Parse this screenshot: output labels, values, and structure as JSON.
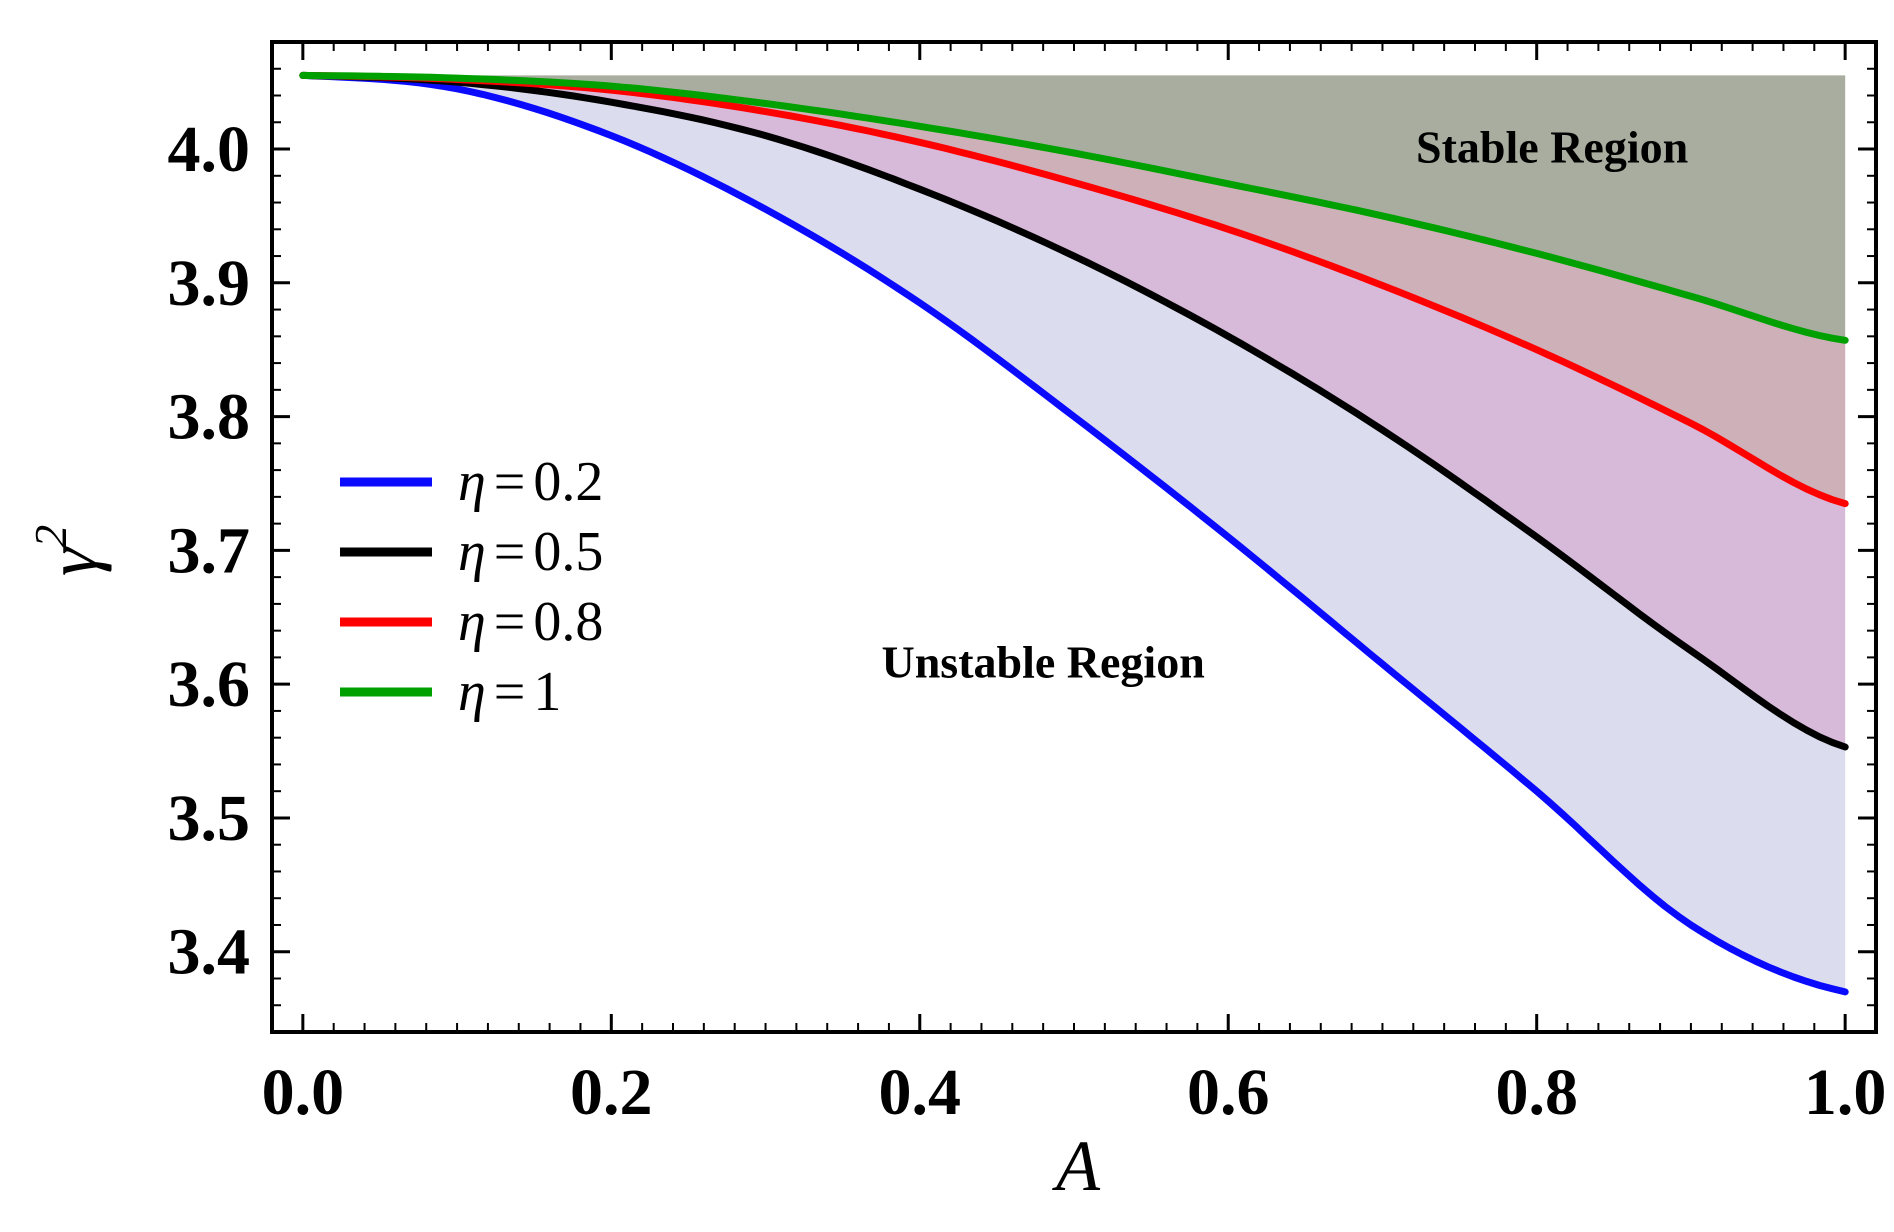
{
  "chart_data": {
    "type": "line",
    "xlabel": "A",
    "ylabel": "γ",
    "ylabel_sup": "2",
    "xlim": [
      -0.02,
      1.02
    ],
    "ylim": [
      3.34,
      4.08
    ],
    "x_ticks": [
      0.0,
      0.2,
      0.4,
      0.6,
      0.8,
      1.0
    ],
    "x_tick_labels": [
      "0.0",
      "0.2",
      "0.4",
      "0.6",
      "0.8",
      "1.0"
    ],
    "y_ticks": [
      3.4,
      3.5,
      3.6,
      3.7,
      3.8,
      3.9,
      4.0
    ],
    "y_tick_labels": [
      "3.4",
      "3.5",
      "3.6",
      "3.7",
      "3.8",
      "3.9",
      "4.0"
    ],
    "grid": false,
    "legend_position": "middle-left",
    "x": [
      0.0,
      0.1,
      0.2,
      0.3,
      0.4,
      0.5,
      0.6,
      0.7,
      0.8,
      0.9,
      1.0
    ],
    "series": [
      {
        "name": "η = 0.2",
        "label_prefix": "η",
        "label_eq": "=",
        "label_value": "0.2",
        "color": "#0a0aff",
        "values": [
          4.055,
          4.045,
          4.01,
          3.955,
          3.885,
          3.8,
          3.71,
          3.615,
          3.52,
          3.42,
          3.37
        ]
      },
      {
        "name": "η = 0.5",
        "label_prefix": "η",
        "label_eq": "=",
        "label_value": "0.5",
        "color": "#000000",
        "values": [
          4.055,
          4.05,
          4.035,
          4.01,
          3.97,
          3.92,
          3.86,
          3.79,
          3.71,
          3.625,
          3.553
        ]
      },
      {
        "name": "η = 0.8",
        "label_prefix": "η",
        "label_eq": "=",
        "label_value": "0.8",
        "color": "#ff0000",
        "values": [
          4.055,
          4.052,
          4.044,
          4.028,
          4.005,
          3.975,
          3.94,
          3.898,
          3.85,
          3.795,
          3.735
        ]
      },
      {
        "name": "η = 1",
        "label_prefix": "η",
        "label_eq": "=",
        "label_value": "1",
        "color": "#00a000",
        "values": [
          4.055,
          4.053,
          4.047,
          4.034,
          4.017,
          3.997,
          3.974,
          3.95,
          3.922,
          3.89,
          3.857
        ]
      }
    ],
    "top_boundary": 4.055,
    "fills": [
      {
        "between": [
          "η = 0.2",
          "η = 0.5"
        ],
        "color": "#dcdcef"
      },
      {
        "between": [
          "η = 0.5",
          "η = 0.8"
        ],
        "color": "#d7b9d9"
      },
      {
        "between": [
          "η = 0.8",
          "η = 1"
        ],
        "color": "#cdb0b8"
      },
      {
        "between": [
          "η = 1",
          "top"
        ],
        "color": "#a8ad9f"
      }
    ],
    "annotations": {
      "stable": "Stable Region",
      "unstable": "Unstable Region"
    }
  }
}
